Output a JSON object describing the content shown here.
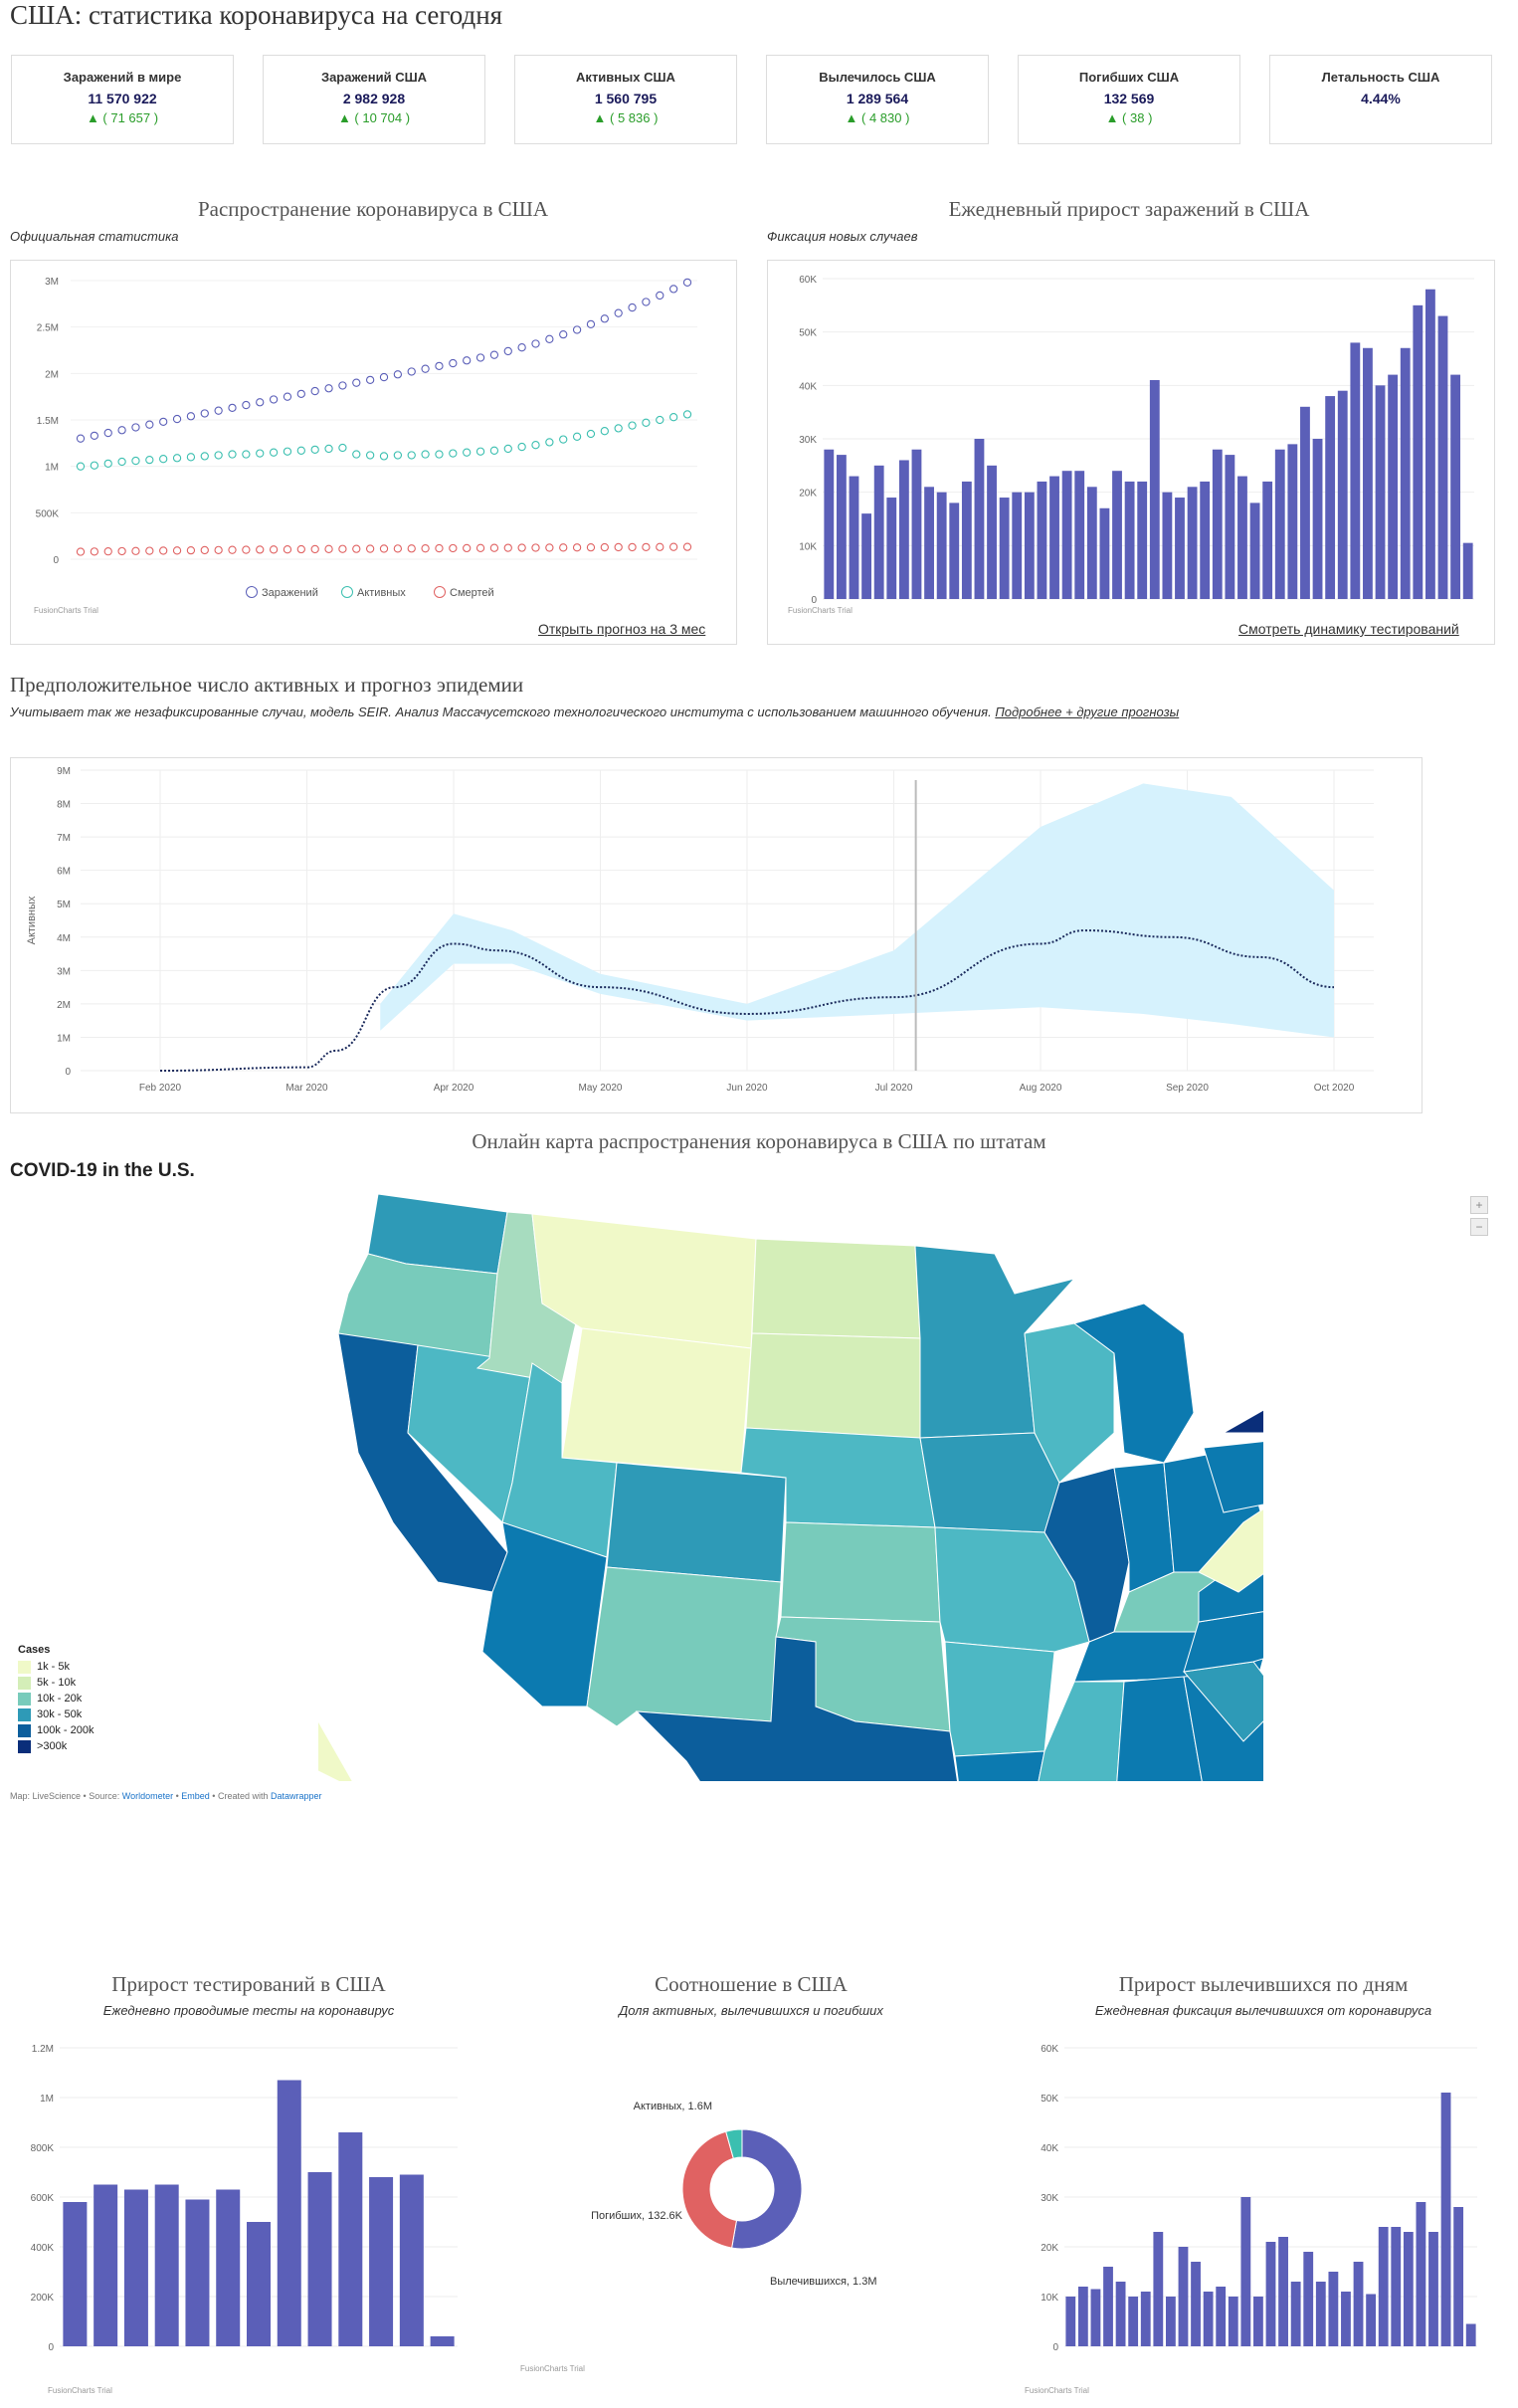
{
  "page": {
    "title": "США: статистика коронавируса на сегодня"
  },
  "stats": [
    {
      "label": "Заражений в мире",
      "value": "11 570 922",
      "delta": "▲ ( 71 657 )"
    },
    {
      "label": "Заражений США",
      "value": "2 982 928",
      "delta": "▲ ( 10 704 )"
    },
    {
      "label": "Активных США",
      "value": "1 560 795",
      "delta": "▲ ( 5 836 )"
    },
    {
      "label": "Вылечилось США",
      "value": "1 289 564",
      "delta": "▲ ( 4 830 )"
    },
    {
      "label": "Погибших США",
      "value": "132 569",
      "delta": "▲ ( 38 )"
    },
    {
      "label": "Летальность США",
      "value": "4.44%",
      "delta": ""
    }
  ],
  "spread": {
    "title": "Распространение коронавируса в США",
    "subtitle": "Официальная статистика",
    "link": "Открыть прогноз на 3 мес",
    "trial": "FusionCharts Trial",
    "legend": [
      "Заражений",
      "Активных",
      "Смертей"
    ]
  },
  "daily": {
    "title": "Ежедневный прирост заражений в США",
    "subtitle": "Фиксация новых случаев",
    "link": "Смотреть динамику тестирований",
    "trial": "FusionCharts Trial"
  },
  "forecast": {
    "title": "Предположительное число активных и прогноз эпидемии",
    "subtitle": "Учитывает так же незафиксированные случаи, модель SEIR. Анализ Массачусетского технологического института с использованием машинного обучения.",
    "link": "Подробнее + другие прогнозы"
  },
  "map": {
    "title": "Онлайн карта распространения коронавируса в США по штатам",
    "heading": "COVID-19 in the U.S.",
    "legend_title": "Cases",
    "legend": [
      {
        "label": "1k - 5k",
        "color": "#f0f9c8"
      },
      {
        "label": "5k - 10k",
        "color": "#d4eeb8"
      },
      {
        "label": "10k - 20k",
        "color": "#78cbbb"
      },
      {
        "label": "30k - 50k",
        "color": "#2e9ab7"
      },
      {
        "label": "100k - 200k",
        "color": "#0c5e9c"
      },
      {
        "label": ">300k",
        "color": "#0a2e7a"
      }
    ],
    "credit_prefix": "Map: LiveScience • Source:",
    "credit_source": "Worldometer",
    "credit_embed": "Embed",
    "credit_mid": "• Created with",
    "credit_tool": "Datawrapper",
    "zoom_in": "+",
    "zoom_out": "−"
  },
  "tests": {
    "title": "Прирост тестирований в США",
    "subtitle": "Ежедневно проводимые тесты на коронавирус",
    "trial": "FusionCharts Trial"
  },
  "ratio": {
    "title": "Соотношение в США",
    "subtitle": "Доля активных, вылечившихся и погибших",
    "trial": "FusionCharts Trial"
  },
  "recovered": {
    "title": "Прирост вылечившихся по дням",
    "subtitle": "Ежедневная фиксация вылечившихся от коронавируса",
    "trial": "FusionCharts Trial"
  },
  "colors": {
    "bar": "#5b5fb8",
    "infected": "#5b5fb8",
    "active": "#3bbfb0",
    "deaths": "#e06262",
    "band": "#d6f2fd"
  },
  "chart_data": [
    {
      "type": "line",
      "id": "spread",
      "ylim": [
        0,
        3000000
      ],
      "yticks": [
        "0",
        "500K",
        "1M",
        "1.5M",
        "2M",
        "2.5M",
        "3M"
      ],
      "series": [
        {
          "name": "Заражений",
          "values": [
            1300000,
            1330000,
            1360000,
            1390000,
            1420000,
            1450000,
            1480000,
            1510000,
            1540000,
            1570000,
            1600000,
            1630000,
            1660000,
            1690000,
            1720000,
            1750000,
            1780000,
            1810000,
            1840000,
            1870000,
            1900000,
            1930000,
            1960000,
            1990000,
            2020000,
            2050000,
            2080000,
            2110000,
            2140000,
            2170000,
            2200000,
            2240000,
            2280000,
            2320000,
            2370000,
            2420000,
            2470000,
            2530000,
            2590000,
            2650000,
            2710000,
            2770000,
            2840000,
            2910000,
            2980000
          ]
        },
        {
          "name": "Активных",
          "values": [
            1000000,
            1010000,
            1030000,
            1050000,
            1060000,
            1070000,
            1080000,
            1090000,
            1100000,
            1110000,
            1120000,
            1130000,
            1130000,
            1140000,
            1150000,
            1160000,
            1170000,
            1180000,
            1190000,
            1200000,
            1130000,
            1120000,
            1110000,
            1120000,
            1120000,
            1130000,
            1130000,
            1140000,
            1150000,
            1160000,
            1170000,
            1190000,
            1210000,
            1230000,
            1260000,
            1290000,
            1320000,
            1350000,
            1380000,
            1410000,
            1440000,
            1470000,
            1500000,
            1530000,
            1560000
          ]
        },
        {
          "name": "Смертей",
          "values": [
            80000,
            82000,
            84000,
            86000,
            88000,
            90000,
            92000,
            93000,
            95000,
            97000,
            98000,
            100000,
            101000,
            103000,
            104000,
            105000,
            107000,
            108000,
            109000,
            110000,
            111000,
            112000,
            113000,
            114000,
            115000,
            116000,
            117000,
            118000,
            119000,
            120000,
            121000,
            122000,
            123000,
            123500,
            124000,
            125000,
            126000,
            127000,
            128000,
            129000,
            129500,
            130000,
            131000,
            132000,
            132500
          ]
        }
      ]
    },
    {
      "type": "bar",
      "id": "daily",
      "ylim": [
        0,
        60000
      ],
      "yticks": [
        "0",
        "10K",
        "20K",
        "30K",
        "40K",
        "50K",
        "60K"
      ],
      "values": [
        28000,
        27000,
        23000,
        16000,
        25000,
        19000,
        26000,
        28000,
        21000,
        20000,
        18000,
        22000,
        30000,
        25000,
        19000,
        20000,
        20000,
        22000,
        23000,
        24000,
        24000,
        21000,
        17000,
        24000,
        22000,
        22000,
        41000,
        20000,
        19000,
        21000,
        22000,
        28000,
        27000,
        23000,
        18000,
        22000,
        28000,
        29000,
        36000,
        30000,
        38000,
        39000,
        48000,
        47000,
        40000,
        42000,
        47000,
        55000,
        58000,
        53000,
        42000,
        10500
      ]
    },
    {
      "type": "area",
      "id": "forecast",
      "ylabel": "Активных",
      "ylim": [
        0,
        9000000
      ],
      "yticks": [
        "0",
        "1M",
        "2M",
        "3M",
        "4M",
        "5M",
        "6M",
        "7M",
        "8M",
        "9M"
      ],
      "xticks": [
        "Feb 2020",
        "Mar 2020",
        "Apr 2020",
        "May 2020",
        "Jun 2020",
        "Jul 2020",
        "Aug 2020",
        "Sep 2020",
        "Oct 2020"
      ],
      "mean": [
        [
          0,
          0
        ],
        [
          1,
          0.1
        ],
        [
          1.2,
          0.6
        ],
        [
          1.6,
          2.5
        ],
        [
          2,
          3.8
        ],
        [
          2.3,
          3.6
        ],
        [
          3,
          2.5
        ],
        [
          4,
          1.7
        ],
        [
          5,
          2.2
        ],
        [
          6,
          3.8
        ],
        [
          6.3,
          4.2
        ],
        [
          6.9,
          4.0
        ],
        [
          7.5,
          3.4
        ],
        [
          8,
          2.5
        ]
      ],
      "upper": [
        [
          1.5,
          2
        ],
        [
          2,
          4.7
        ],
        [
          2.4,
          4.2
        ],
        [
          3,
          2.9
        ],
        [
          4,
          2.0
        ],
        [
          5,
          3.6
        ],
        [
          6,
          7.3
        ],
        [
          6.7,
          8.6
        ],
        [
          7.3,
          8.2
        ],
        [
          8,
          5.4
        ]
      ],
      "lower": [
        [
          1.5,
          1.2
        ],
        [
          2,
          3.2
        ],
        [
          2.4,
          3.2
        ],
        [
          3,
          2.3
        ],
        [
          4,
          1.5
        ],
        [
          5,
          1.7
        ],
        [
          6,
          1.9
        ],
        [
          6.7,
          1.7
        ],
        [
          7.3,
          1.4
        ],
        [
          8,
          1.0
        ]
      ]
    },
    {
      "type": "bar",
      "id": "tests",
      "ylim": [
        0,
        1200000
      ],
      "yticks": [
        "0",
        "200K",
        "400K",
        "600K",
        "800K",
        "1M",
        "1.2M"
      ],
      "values": [
        580000,
        650000,
        630000,
        650000,
        590000,
        630000,
        500000,
        1070000,
        700000,
        860000,
        680000,
        690000,
        40000
      ]
    },
    {
      "type": "pie",
      "id": "ratio",
      "labels": [
        "Активных, 1.6M",
        "Вылечившихся, 1.3M",
        "Погибших, 132.6K"
      ],
      "values": [
        1.6,
        1.3,
        0.1326
      ]
    },
    {
      "type": "bar",
      "id": "recovered",
      "ylim": [
        0,
        60000
      ],
      "yticks": [
        "0",
        "10K",
        "20K",
        "30K",
        "40K",
        "50K",
        "60K"
      ],
      "values": [
        10000,
        12000,
        11500,
        16000,
        13000,
        10000,
        11000,
        23000,
        10000,
        20000,
        17000,
        11000,
        12000,
        10000,
        30000,
        10000,
        21000,
        22000,
        13000,
        19000,
        13000,
        15000,
        11000,
        17000,
        10500,
        24000,
        24000,
        23000,
        29000,
        23000,
        51000,
        28000,
        4500
      ]
    }
  ]
}
